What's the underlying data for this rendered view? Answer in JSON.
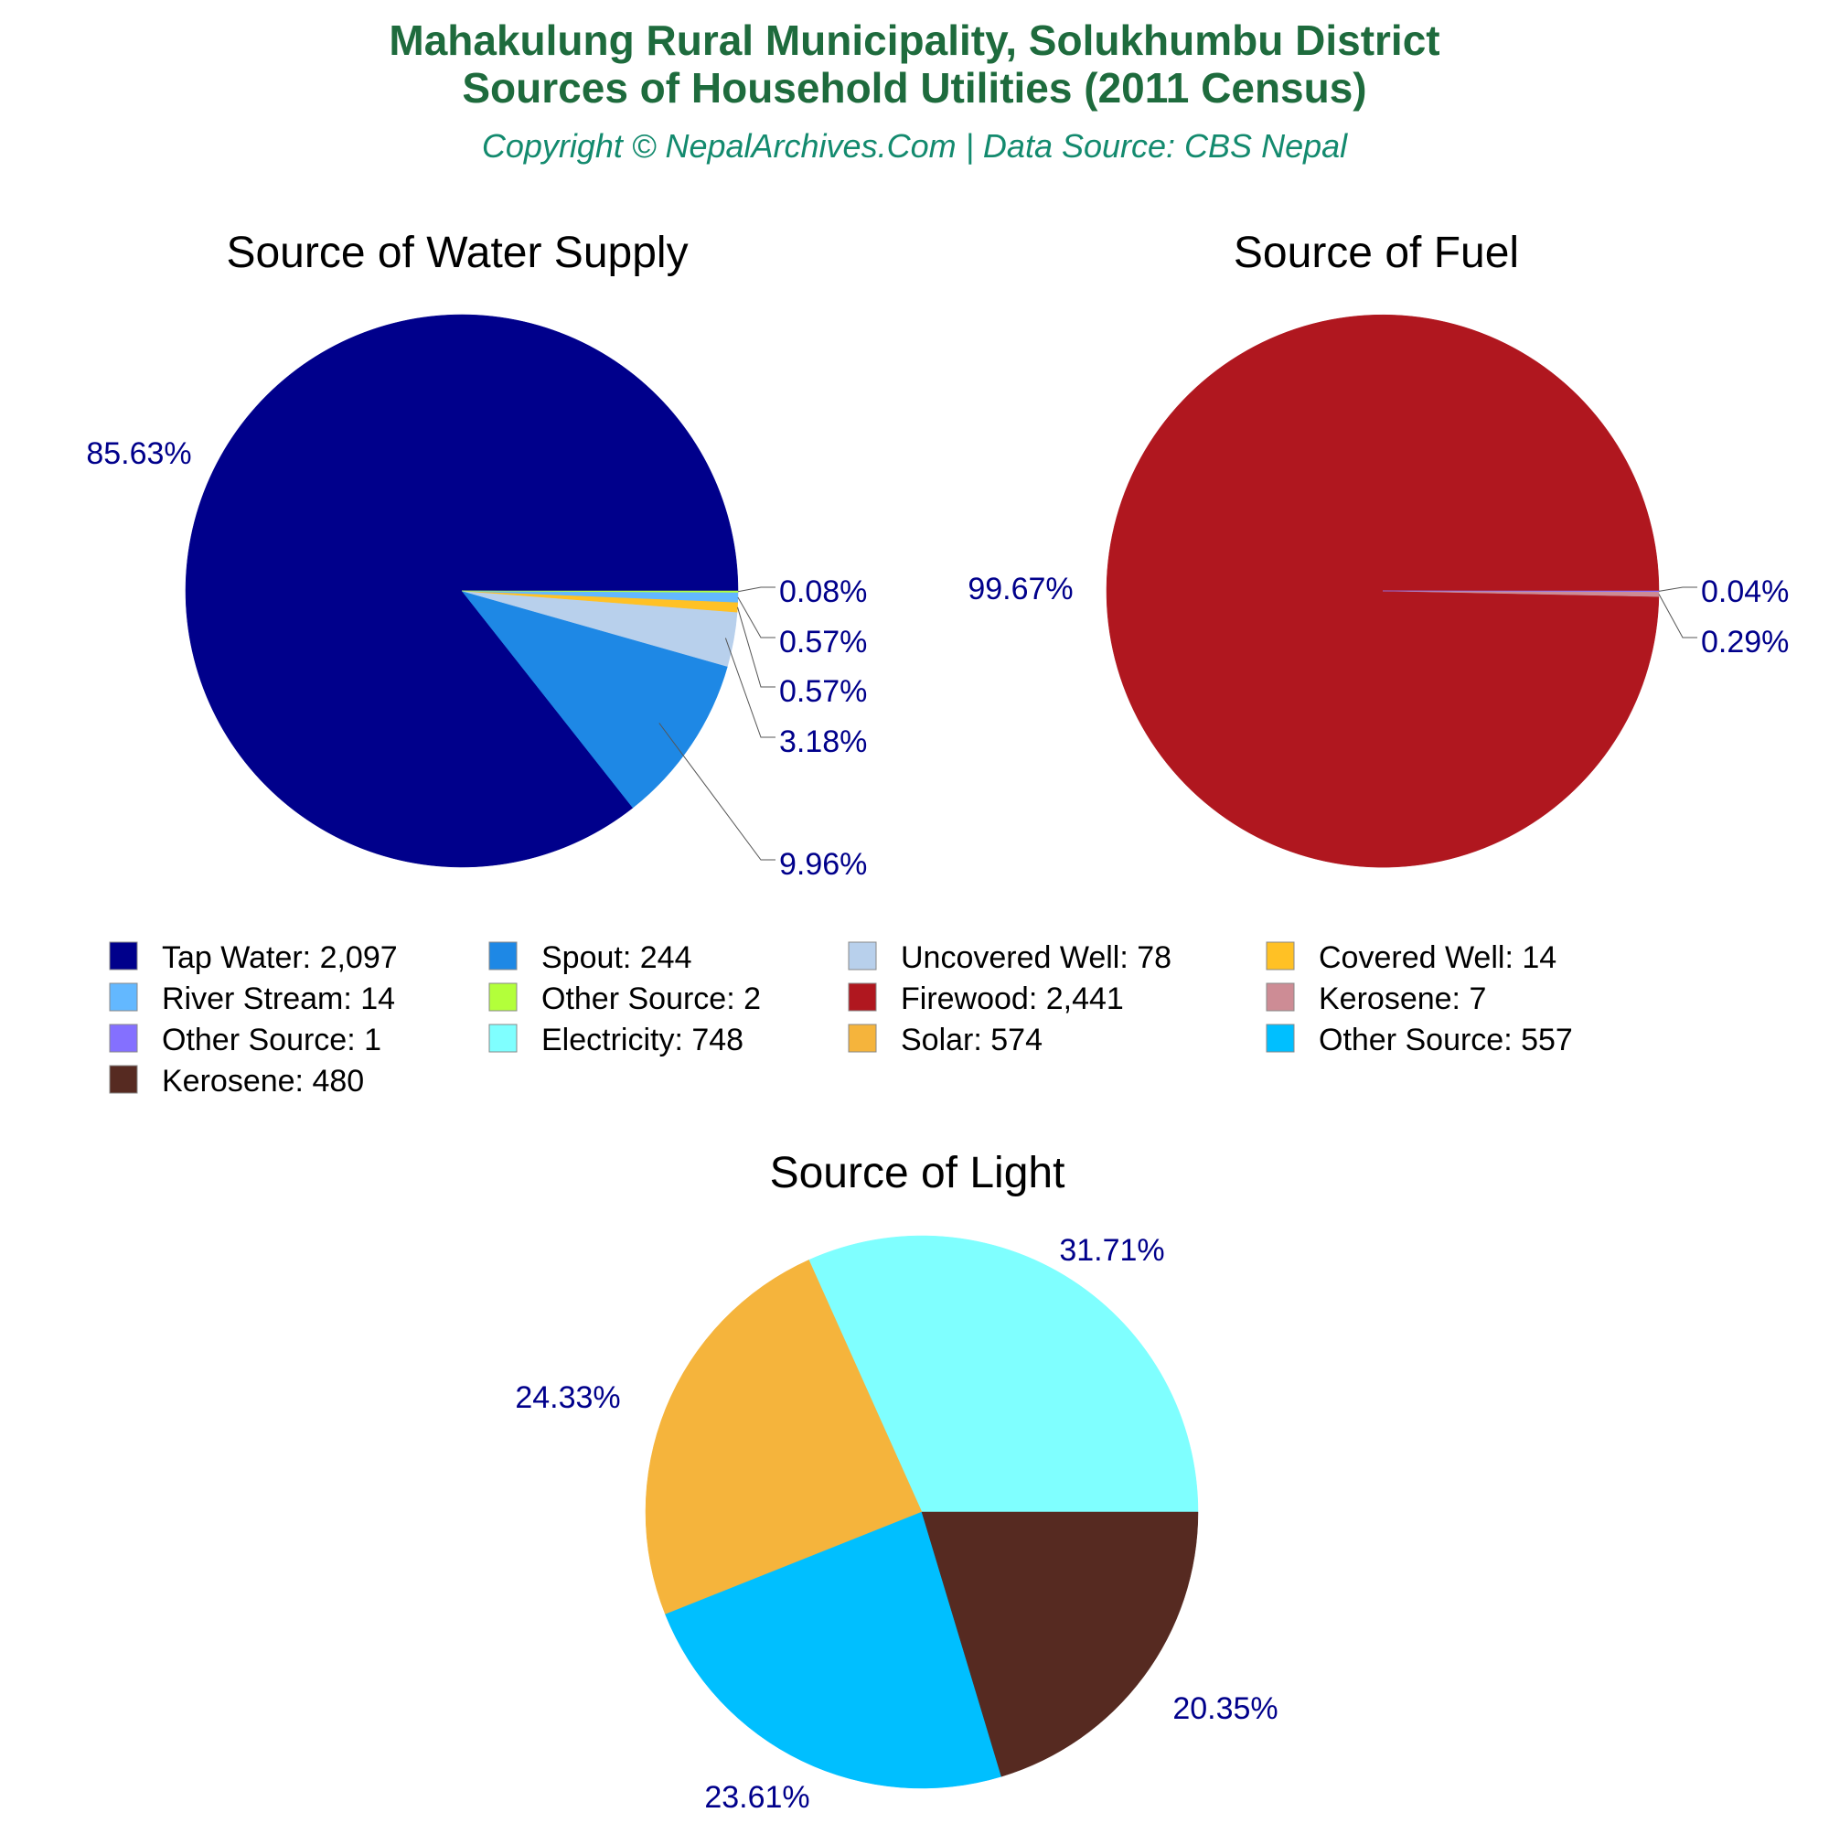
{
  "header": {
    "title_line1": "Mahakulung Rural Municipality, Solukhumbu District",
    "title_line2": "Sources of Household Utilities (2011 Census)",
    "subtitle": "Copyright © NepalArchives.Com | Data Source: CBS Nepal"
  },
  "colors": {
    "title": "#1e6b3d",
    "subtitle": "#138a6e",
    "pct_label": "#00008b",
    "leader": "#555555"
  },
  "chart_data": [
    {
      "type": "pie",
      "title": "Source of Water Supply",
      "slices": [
        {
          "label": "Tap Water",
          "value": 2097,
          "value_text": "2,097",
          "pct": "85.63%",
          "color": "#00008b"
        },
        {
          "label": "Spout",
          "value": 244,
          "value_text": "244",
          "pct": "9.96%",
          "color": "#1e88e5"
        },
        {
          "label": "Uncovered Well",
          "value": 78,
          "value_text": "78",
          "pct": "3.18%",
          "color": "#b8d0ec"
        },
        {
          "label": "Covered Well",
          "value": 14,
          "value_text": "14",
          "pct": "0.57%",
          "color": "#ffc125"
        },
        {
          "label": "River Stream",
          "value": 14,
          "value_text": "14",
          "pct": "0.57%",
          "color": "#63b8ff"
        },
        {
          "label": "Other Source",
          "value": 2,
          "value_text": "2",
          "pct": "0.08%",
          "color": "#b3ff3a"
        }
      ]
    },
    {
      "type": "pie",
      "title": "Source of Fuel",
      "slices": [
        {
          "label": "Firewood",
          "value": 2441,
          "value_text": "2,441",
          "pct": "99.67%",
          "color": "#b0171f"
        },
        {
          "label": "Kerosene",
          "value": 7,
          "value_text": "7",
          "pct": "0.29%",
          "color": "#cd8c95"
        },
        {
          "label": "Other Source",
          "value": 1,
          "value_text": "1",
          "pct": "0.04%",
          "color": "#8470ff"
        }
      ]
    },
    {
      "type": "pie",
      "title": "Source of Light",
      "slices": [
        {
          "label": "Electricity",
          "value": 748,
          "value_text": "748",
          "pct": "31.71%",
          "color": "#7fffff"
        },
        {
          "label": "Solar",
          "value": 574,
          "value_text": "574",
          "pct": "24.33%",
          "color": "#f5b43c"
        },
        {
          "label": "Other Source",
          "value": 557,
          "value_text": "557",
          "pct": "23.61%",
          "color": "#00bfff"
        },
        {
          "label": "Kerosene",
          "value": 480,
          "value_text": "480",
          "pct": "20.35%",
          "color": "#562a21"
        }
      ]
    }
  ],
  "legend": [
    {
      "text": "Tap Water: 2,097",
      "color": "#00008b"
    },
    {
      "text": "Spout: 244",
      "color": "#1e88e5"
    },
    {
      "text": "Uncovered Well: 78",
      "color": "#b8d0ec"
    },
    {
      "text": "Covered Well: 14",
      "color": "#ffc125"
    },
    {
      "text": "River Stream: 14",
      "color": "#63b8ff"
    },
    {
      "text": "Other Source: 2",
      "color": "#b3ff3a"
    },
    {
      "text": "Firewood: 2,441",
      "color": "#b0171f"
    },
    {
      "text": "Kerosene: 7",
      "color": "#cd8c95"
    },
    {
      "text": "Other Source: 1",
      "color": "#8470ff"
    },
    {
      "text": "Electricity: 748",
      "color": "#7fffff"
    },
    {
      "text": "Solar: 574",
      "color": "#f5b43c"
    },
    {
      "text": "Other Source: 557",
      "color": "#00bfff"
    },
    {
      "text": "Kerosene: 480",
      "color": "#562a21"
    }
  ]
}
